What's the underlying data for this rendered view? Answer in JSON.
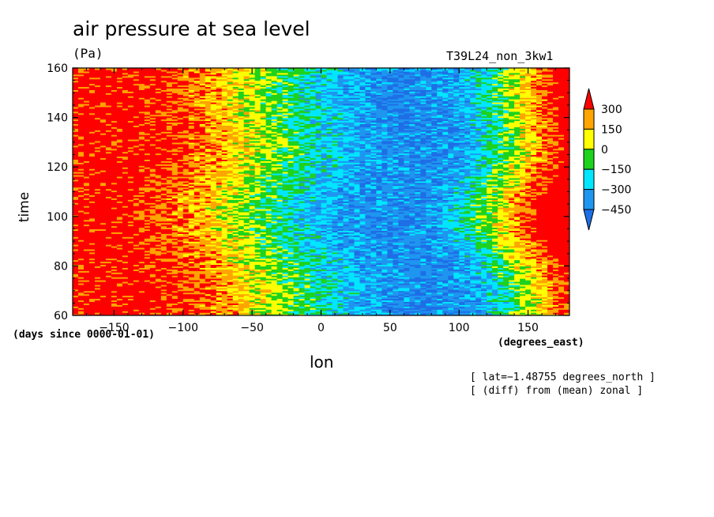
{
  "chart_data": {
    "type": "heatmap",
    "title": "air pressure at sea level",
    "units": "(Pa)",
    "run_label": "T39L24_non_3kw1",
    "xlabel": "lon",
    "ylabel": "time",
    "x_units": "(degrees_east)",
    "y_units": "(days since 0000-01-01)",
    "xlim": [
      -180,
      180
    ],
    "ylim": [
      60,
      160
    ],
    "x_ticks": [
      -150,
      -100,
      -50,
      0,
      50,
      100,
      150
    ],
    "x_tick_labels": [
      "−150",
      "−100",
      "−50",
      "0",
      "50",
      "100",
      "150"
    ],
    "y_ticks": [
      60,
      80,
      100,
      120,
      140,
      160
    ],
    "y_tick_labels": [
      "60",
      "80",
      "100",
      "120",
      "140",
      "160"
    ],
    "notes": [
      "[ lat=−1.48755 degrees_north ]",
      "[ (diff) from (mean) zonal ]"
    ],
    "colorbar": {
      "levels": [
        -450,
        -300,
        -150,
        0,
        150,
        300
      ],
      "level_labels": [
        "−450",
        "−300",
        "−150",
        "0",
        "150",
        "300"
      ],
      "colors": [
        "#1e6ee6",
        "#1e96f0",
        "#00e6ff",
        "#1ed21e",
        "#ffff00",
        "#ffa500",
        "#ff0000"
      ]
    },
    "field_description": "zonal anomaly: positive (red) west of -90E, negative (blue) between about -20E and 110E",
    "grid": false
  }
}
